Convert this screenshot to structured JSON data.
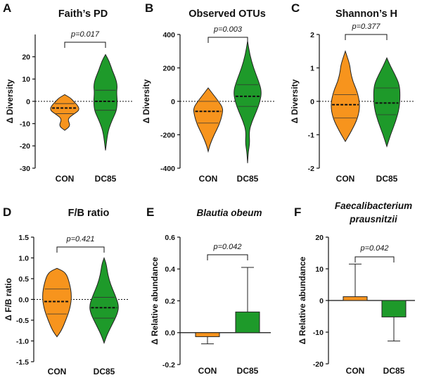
{
  "colors": {
    "con": "#F7941D",
    "dc85": "#1E9A2A",
    "outline": "#222222",
    "median": "#111111"
  },
  "chart_data": [
    {
      "id": "A",
      "type": "violin",
      "letter": "A",
      "title": "Faith’s PD",
      "ylabel": "Δ Diversity",
      "ylim": [
        -30,
        30
      ],
      "yticks": [
        -30,
        -20,
        -10,
        0,
        10,
        20
      ],
      "ytick_labels": [
        "-30",
        "-20",
        "-10",
        "0",
        "10",
        "20"
      ],
      "categories": [
        "CON",
        "DC85"
      ],
      "pvalue": "p=0.017",
      "groups": [
        {
          "name": "CON",
          "median": -3,
          "q1": -5.5,
          "q3": -1,
          "profile": [
            [
              -13,
              0
            ],
            [
              -11,
              0.4
            ],
            [
              -8,
              0.18
            ],
            [
              -6,
              0.55
            ],
            [
              -4,
              1.0
            ],
            [
              -2,
              0.9
            ],
            [
              0,
              0.6
            ],
            [
              1.5,
              0.4
            ],
            [
              3,
              0
            ]
          ]
        },
        {
          "name": "DC85",
          "median": 0,
          "q1": -4,
          "q3": 5,
          "profile": [
            [
              -22,
              0
            ],
            [
              -14,
              0.15
            ],
            [
              -10,
              0.35
            ],
            [
              -7,
              0.55
            ],
            [
              -4,
              0.75
            ],
            [
              0,
              0.8
            ],
            [
              4,
              0.75
            ],
            [
              7,
              0.8
            ],
            [
              10,
              0.7
            ],
            [
              14,
              0.45
            ],
            [
              18,
              0.25
            ],
            [
              21,
              0
            ]
          ]
        }
      ]
    },
    {
      "id": "B",
      "type": "violin",
      "letter": "B",
      "title": "Observed OTUs",
      "ylabel": "Δ Diversity",
      "ylim": [
        -400,
        400
      ],
      "yticks": [
        -400,
        -200,
        0,
        200,
        400
      ],
      "ytick_labels": [
        "-400",
        "-200",
        "0",
        "200",
        "400"
      ],
      "categories": [
        "CON",
        "DC85"
      ],
      "pvalue": "p=0.003",
      "groups": [
        {
          "name": "CON",
          "median": -60,
          "q1": -130,
          "q3": 0,
          "profile": [
            [
              -300,
              0
            ],
            [
              -260,
              0.12
            ],
            [
              -200,
              0.4
            ],
            [
              -140,
              0.75
            ],
            [
              -80,
              0.95
            ],
            [
              -40,
              1.0
            ],
            [
              0,
              0.7
            ],
            [
              40,
              0.35
            ],
            [
              80,
              0
            ]
          ]
        },
        {
          "name": "DC85",
          "median": 30,
          "q1": -30,
          "q3": 100,
          "profile": [
            [
              -370,
              0
            ],
            [
              -300,
              0.05
            ],
            [
              -250,
              0.15
            ],
            [
              -180,
              0.1
            ],
            [
              -120,
              0.3
            ],
            [
              -60,
              0.6
            ],
            [
              0,
              0.85
            ],
            [
              60,
              0.95
            ],
            [
              120,
              0.75
            ],
            [
              200,
              0.4
            ],
            [
              280,
              0.15
            ],
            [
              360,
              0
            ]
          ]
        }
      ]
    },
    {
      "id": "C",
      "type": "violin",
      "letter": "C",
      "title": "Shannon’s H",
      "ylabel": "Δ Diversity",
      "ylim": [
        -2,
        2
      ],
      "yticks": [
        -2,
        -1,
        0,
        1,
        2
      ],
      "ytick_labels": [
        "-2",
        "-1",
        "0",
        "1",
        "2"
      ],
      "categories": [
        "CON",
        "DC85"
      ],
      "pvalue": "p=0.377",
      "groups": [
        {
          "name": "CON",
          "median": -0.1,
          "q1": -0.5,
          "q3": 0.2,
          "profile": [
            [
              -1.2,
              0
            ],
            [
              -0.9,
              0.4
            ],
            [
              -0.5,
              0.85
            ],
            [
              -0.1,
              1.0
            ],
            [
              0.3,
              0.8
            ],
            [
              0.6,
              0.5
            ],
            [
              0.9,
              0.35
            ],
            [
              1.1,
              0.3
            ],
            [
              1.5,
              0
            ]
          ]
        },
        {
          "name": "DC85",
          "median": -0.05,
          "q1": -0.4,
          "q3": 0.4,
          "profile": [
            [
              -1.35,
              0
            ],
            [
              -1.0,
              0.25
            ],
            [
              -0.6,
              0.6
            ],
            [
              -0.2,
              0.85
            ],
            [
              0.2,
              0.9
            ],
            [
              0.5,
              0.85
            ],
            [
              0.8,
              0.55
            ],
            [
              1.05,
              0.25
            ],
            [
              1.3,
              0
            ]
          ]
        }
      ]
    },
    {
      "id": "D",
      "type": "violin",
      "letter": "D",
      "title": "F/B ratio",
      "ylabel": "Δ F/B ratio",
      "ylim": [
        -1.5,
        1.5
      ],
      "yticks": [
        -1.5,
        -1.0,
        -0.5,
        0.0,
        0.5,
        1.0,
        1.5
      ],
      "ytick_labels": [
        "-1.5",
        "-1.0",
        "-0.5",
        "0.0",
        "0.5",
        "1.0",
        "1.5"
      ],
      "categories": [
        "CON",
        "DC85"
      ],
      "pvalue": "p=0.421",
      "groups": [
        {
          "name": "CON",
          "median": -0.05,
          "q1": -0.35,
          "q3": 0.25,
          "profile": [
            [
              -0.9,
              0
            ],
            [
              -0.75,
              0.3
            ],
            [
              -0.5,
              0.6
            ],
            [
              -0.2,
              0.9
            ],
            [
              0.1,
              1.0
            ],
            [
              0.4,
              0.85
            ],
            [
              0.65,
              0.6
            ],
            [
              0.75,
              0
            ]
          ]
        },
        {
          "name": "DC85",
          "median": -0.2,
          "q1": -0.45,
          "q3": 0.05,
          "profile": [
            [
              -1.05,
              0
            ],
            [
              -0.85,
              0.2
            ],
            [
              -0.6,
              0.55
            ],
            [
              -0.35,
              0.9
            ],
            [
              -0.15,
              1.0
            ],
            [
              0.1,
              0.75
            ],
            [
              0.35,
              0.45
            ],
            [
              0.6,
              0.25
            ],
            [
              0.85,
              0.15
            ],
            [
              1.0,
              0
            ]
          ]
        }
      ]
    },
    {
      "id": "E",
      "type": "bar",
      "letter": "E",
      "title": "Blautia obeum",
      "title_italic": true,
      "ylabel": "Δ Relative abundance",
      "ylim": [
        -0.2,
        0.6
      ],
      "yticks": [
        -0.2,
        0.0,
        0.2,
        0.4,
        0.6
      ],
      "ytick_labels": [
        "-0.2",
        "0.0",
        "0.2",
        "0.4",
        "0.6"
      ],
      "categories": [
        "CON",
        "DC85"
      ],
      "values": [
        -0.025,
        0.13
      ],
      "errors": [
        0.045,
        0.28
      ],
      "pvalue": "p=0.042"
    },
    {
      "id": "F",
      "type": "bar",
      "letter": "F",
      "title": "Faecalibacterium",
      "title2": "prausnitzii",
      "title_italic": true,
      "ylabel": "Δ Relative abundance",
      "ylim": [
        -20,
        20
      ],
      "yticks": [
        -20,
        -10,
        0,
        10,
        20
      ],
      "ytick_labels": [
        "-20",
        "-10",
        "0",
        "10",
        "20"
      ],
      "categories": [
        "CON",
        "DC85"
      ],
      "values": [
        1.2,
        -5.2
      ],
      "errors": [
        10.3,
        7.6
      ],
      "pvalue": "p=0.042"
    }
  ]
}
